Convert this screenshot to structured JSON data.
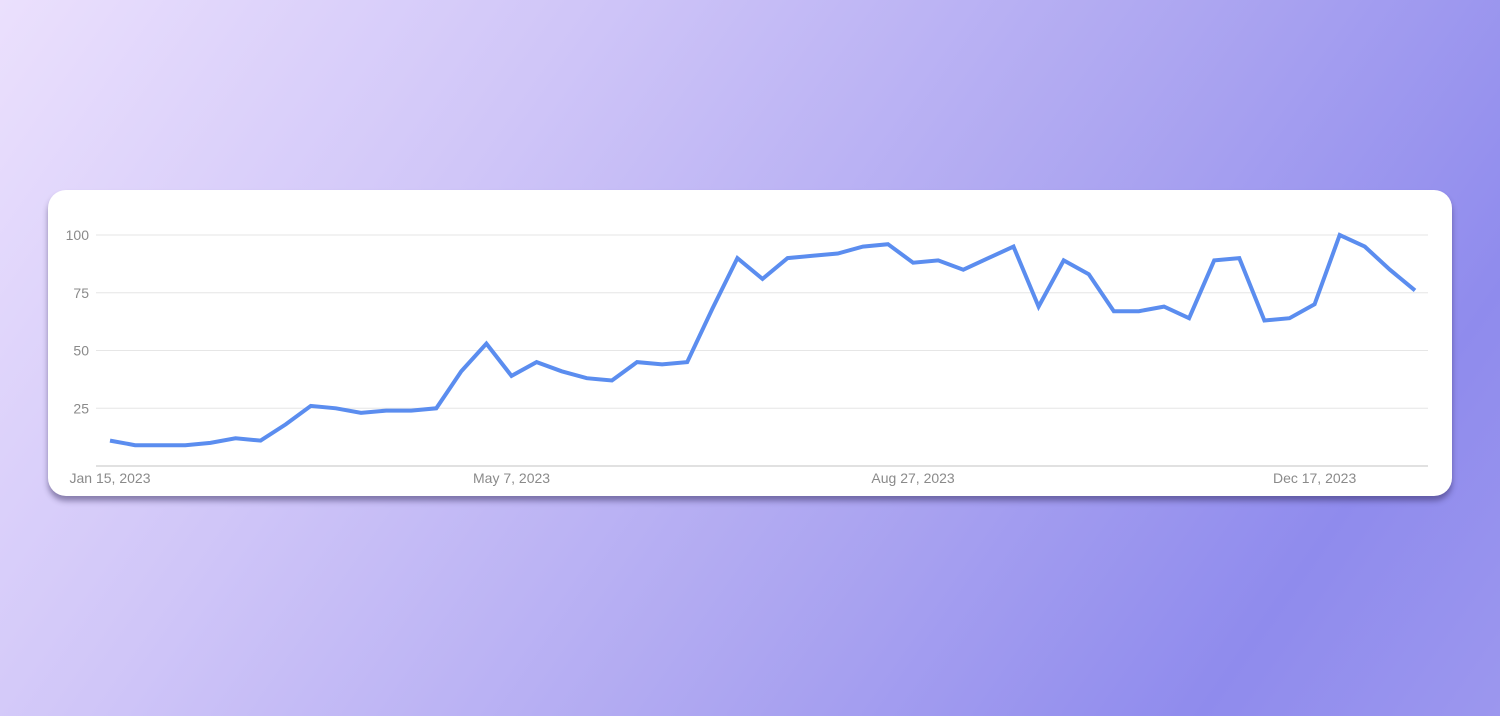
{
  "chart_data": {
    "type": "line",
    "title": "",
    "xlabel": "",
    "ylabel": "",
    "ylim": [
      0,
      100
    ],
    "yticks": [
      25,
      50,
      75,
      100
    ],
    "xtick_labels": [
      "Jan 15, 2023",
      "May 7, 2023",
      "Aug 27, 2023",
      "Dec 17, 2023"
    ],
    "grid": true,
    "legend": "none",
    "line_color": "#5b8def",
    "x": [
      "2023-01-15",
      "2023-01-22",
      "2023-01-29",
      "2023-02-05",
      "2023-02-12",
      "2023-02-19",
      "2023-02-26",
      "2023-03-05",
      "2023-03-12",
      "2023-03-19",
      "2023-03-26",
      "2023-04-02",
      "2023-04-09",
      "2023-04-16",
      "2023-04-23",
      "2023-04-30",
      "2023-05-07",
      "2023-05-14",
      "2023-05-21",
      "2023-05-28",
      "2023-06-04",
      "2023-06-11",
      "2023-06-18",
      "2023-06-25",
      "2023-07-02",
      "2023-07-09",
      "2023-07-16",
      "2023-07-23",
      "2023-07-30",
      "2023-08-06",
      "2023-08-13",
      "2023-08-20",
      "2023-08-27",
      "2023-09-03",
      "2023-09-10",
      "2023-09-17",
      "2023-09-24",
      "2023-10-01",
      "2023-10-08",
      "2023-10-15",
      "2023-10-22",
      "2023-10-29",
      "2023-11-05",
      "2023-11-12",
      "2023-11-19",
      "2023-11-26",
      "2023-12-03",
      "2023-12-10",
      "2023-12-17",
      "2023-12-24",
      "2023-12-31",
      "2024-01-07",
      "2024-01-14"
    ],
    "series": [
      {
        "values": [
          11,
          9,
          9,
          9,
          10,
          12,
          11,
          18,
          26,
          25,
          23,
          24,
          24,
          25,
          41,
          53,
          39,
          45,
          41,
          38,
          37,
          45,
          44,
          45,
          68,
          90,
          81,
          90,
          91,
          92,
          95,
          96,
          88,
          89,
          85,
          90,
          95,
          69,
          89,
          83,
          67,
          67,
          69,
          64,
          89,
          90,
          63,
          64,
          70,
          100,
          95,
          85,
          76
        ]
      }
    ]
  }
}
